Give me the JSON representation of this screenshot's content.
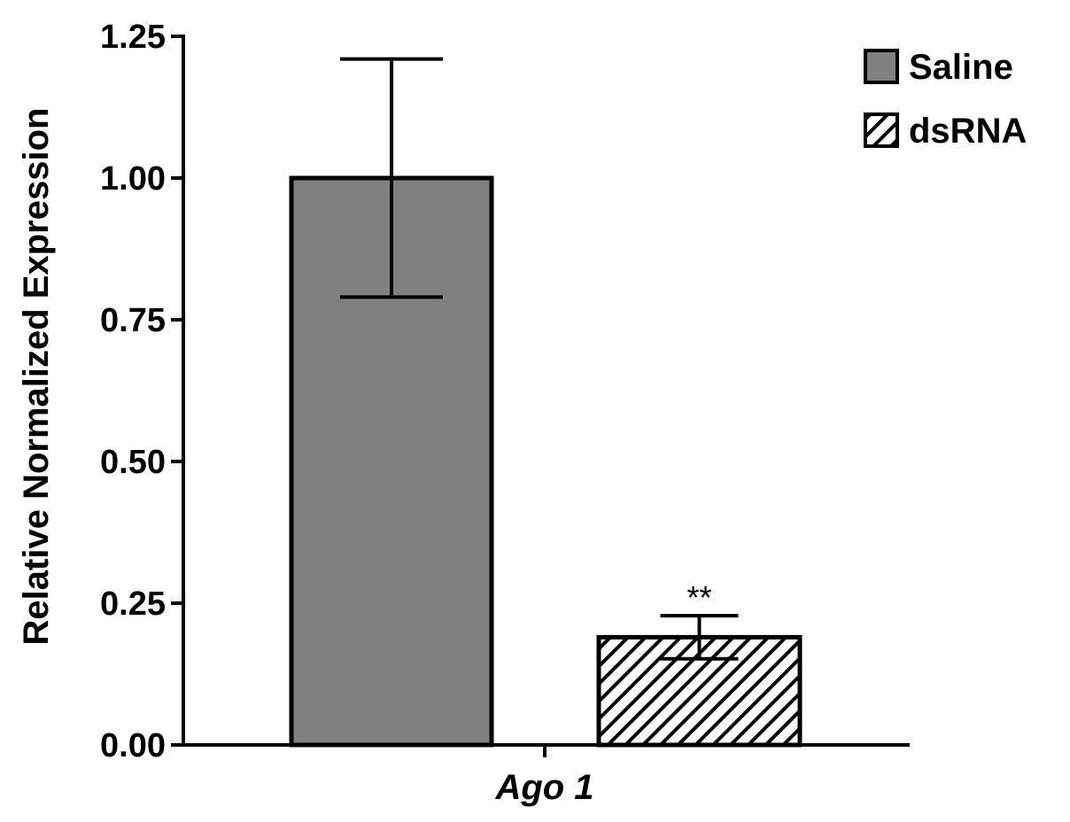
{
  "chart_data": {
    "type": "bar",
    "ylabel": "Relative Normalized Expression",
    "categories": [
      "Ago 1"
    ],
    "ylim": [
      0,
      1.25
    ],
    "yticks": [
      0,
      0.25,
      0.5,
      0.75,
      1.0,
      1.25
    ],
    "ytick_labels": [
      "0.00",
      "0.25",
      "0.50",
      "0.75",
      "1.00",
      "1.25"
    ],
    "legend_position": "top-right",
    "grid": false,
    "series": [
      {
        "name": "Saline",
        "values": [
          1.0
        ],
        "error": [
          0.21
        ],
        "color": "#808080",
        "pattern": "solid"
      },
      {
        "name": "dsRNA",
        "values": [
          0.19
        ],
        "error": [
          0.038
        ],
        "color": "#ffffff",
        "pattern": "diagonal-hatch"
      }
    ],
    "annotations": [
      {
        "series": "dsRNA",
        "category": "Ago 1",
        "text": "**"
      }
    ]
  }
}
